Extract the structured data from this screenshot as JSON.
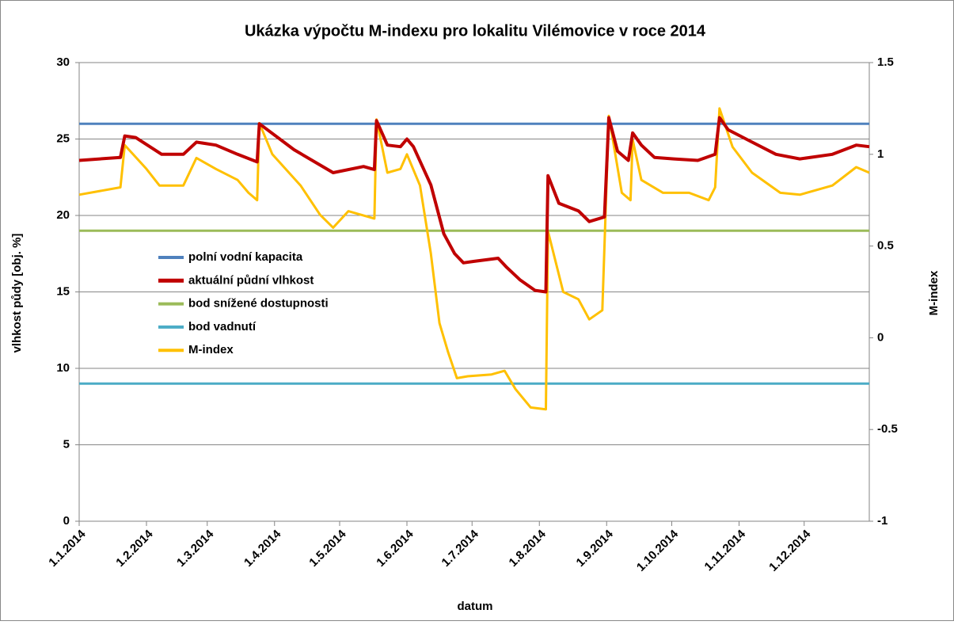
{
  "chart_data": {
    "type": "line",
    "title": "Ukázka výpočtu M-indexu pro lokalitu Vilémovice v roce 2014",
    "x_label": "datum",
    "y_label": "vlhkost půdy [obj. %]",
    "y2_label": "M-index",
    "xlim": [
      "2014-01-01",
      "2014-12-31"
    ],
    "xticks": [
      {
        "value": "2014-01-01",
        "label": "1.1.2014"
      },
      {
        "value": "2014-02-01",
        "label": "1.2.2014"
      },
      {
        "value": "2014-03-01",
        "label": "1.3.2014"
      },
      {
        "value": "2014-04-01",
        "label": "1.4.2014"
      },
      {
        "value": "2014-05-01",
        "label": "1.5.2014"
      },
      {
        "value": "2014-06-01",
        "label": "1.6.2014"
      },
      {
        "value": "2014-07-01",
        "label": "1.7.2014"
      },
      {
        "value": "2014-08-01",
        "label": "1.8.2014"
      },
      {
        "value": "2014-09-01",
        "label": "1.9.2014"
      },
      {
        "value": "2014-10-01",
        "label": "1.10.2014"
      },
      {
        "value": "2014-11-01",
        "label": "1.11.2014"
      },
      {
        "value": "2014-12-01",
        "label": "1.12.2014"
      }
    ],
    "ylim": [
      0,
      30
    ],
    "yticks": [
      0,
      5,
      10,
      15,
      20,
      25,
      30
    ],
    "y2lim": [
      -1,
      1.5
    ],
    "y2ticks": [
      -1,
      -0.5,
      0,
      0.5,
      1,
      1.5
    ],
    "grid": true,
    "legend": "left",
    "series": [
      {
        "name": "polní vodní kapacita",
        "color": "#4f81bd",
        "x": [
          "2014-01-01",
          "2014-12-31"
        ],
        "values": [
          26,
          26
        ]
      },
      {
        "name": "aktuální půdní vlhkost",
        "color": "#c00000",
        "x": [
          "2014-01-01",
          "2014-01-20",
          "2014-01-22",
          "2014-01-27",
          "2014-02-08",
          "2014-02-18",
          "2014-02-24",
          "2014-03-05",
          "2014-03-15",
          "2014-03-24",
          "2014-03-25",
          "2014-04-10",
          "2014-04-28",
          "2014-05-12",
          "2014-05-17",
          "2014-05-18",
          "2014-05-23",
          "2014-05-29",
          "2014-06-01",
          "2014-06-04",
          "2014-06-12",
          "2014-06-18",
          "2014-06-23",
          "2014-06-27",
          "2014-07-02",
          "2014-07-13",
          "2014-07-17",
          "2014-07-23",
          "2014-07-30",
          "2014-08-04",
          "2014-08-05",
          "2014-08-10",
          "2014-08-19",
          "2014-08-24",
          "2014-08-31",
          "2014-09-02",
          "2014-09-06",
          "2014-09-11",
          "2014-09-13",
          "2014-09-17",
          "2014-09-23",
          "2014-10-02",
          "2014-10-13",
          "2014-10-21",
          "2014-10-23",
          "2014-10-27",
          "2014-11-07",
          "2014-11-18",
          "2014-11-29",
          "2014-12-14",
          "2014-12-25",
          "2014-12-31"
        ],
        "values": [
          23.6,
          23.8,
          25.2,
          25.1,
          24.0,
          24.0,
          24.8,
          24.6,
          24.0,
          23.5,
          26.0,
          24.3,
          22.8,
          23.2,
          23.0,
          26.2,
          24.6,
          24.5,
          25.0,
          24.5,
          22.0,
          18.8,
          17.5,
          16.9,
          17.0,
          17.2,
          16.6,
          15.8,
          15.1,
          15.0,
          22.6,
          20.8,
          20.3,
          19.6,
          19.9,
          26.4,
          24.2,
          23.6,
          25.4,
          24.6,
          23.8,
          23.7,
          23.6,
          24.0,
          26.4,
          25.6,
          24.8,
          24.0,
          23.7,
          24.0,
          24.6,
          24.5
        ]
      },
      {
        "name": "bod snížené dostupnosti",
        "color": "#9bbb59",
        "x": [
          "2014-01-01",
          "2014-12-31"
        ],
        "values": [
          19,
          19
        ]
      },
      {
        "name": "bod vadnutí",
        "color": "#4bacc6",
        "x": [
          "2014-01-01",
          "2014-12-31"
        ],
        "values": [
          9,
          9
        ]
      },
      {
        "name": "M-index",
        "color": "#ffc000",
        "axis": "y2",
        "x": [
          "2014-01-01",
          "2014-01-20",
          "2014-01-22",
          "2014-02-01",
          "2014-02-07",
          "2014-02-18",
          "2014-02-24",
          "2014-03-05",
          "2014-03-15",
          "2014-03-20",
          "2014-03-24",
          "2014-03-25",
          "2014-03-31",
          "2014-04-13",
          "2014-04-22",
          "2014-04-28",
          "2014-05-05",
          "2014-05-17",
          "2014-05-18",
          "2014-05-23",
          "2014-05-29",
          "2014-06-01",
          "2014-06-07",
          "2014-06-12",
          "2014-06-16",
          "2014-06-20",
          "2014-06-24",
          "2014-06-29",
          "2014-07-10",
          "2014-07-16",
          "2014-07-21",
          "2014-07-28",
          "2014-08-04",
          "2014-08-05",
          "2014-08-12",
          "2014-08-19",
          "2014-08-24",
          "2014-08-30",
          "2014-09-02",
          "2014-09-08",
          "2014-09-12",
          "2014-09-13",
          "2014-09-17",
          "2014-09-27",
          "2014-10-09",
          "2014-10-18",
          "2014-10-21",
          "2014-10-23",
          "2014-10-29",
          "2014-11-07",
          "2014-11-20",
          "2014-11-29",
          "2014-12-14",
          "2014-12-25",
          "2014-12-31"
        ],
        "values": [
          0.78,
          0.82,
          1.05,
          0.92,
          0.83,
          0.83,
          0.98,
          0.92,
          0.86,
          0.79,
          0.75,
          1.17,
          1.0,
          0.83,
          0.67,
          0.6,
          0.69,
          0.65,
          1.19,
          0.9,
          0.92,
          1.0,
          0.83,
          0.46,
          0.08,
          -0.08,
          -0.22,
          -0.21,
          -0.2,
          -0.18,
          -0.28,
          -0.38,
          -0.39,
          0.58,
          0.25,
          0.21,
          0.1,
          0.15,
          1.21,
          0.79,
          0.75,
          1.08,
          0.86,
          0.79,
          0.79,
          0.75,
          0.82,
          1.25,
          1.04,
          0.9,
          0.79,
          0.78,
          0.83,
          0.93,
          0.9
        ]
      }
    ]
  }
}
